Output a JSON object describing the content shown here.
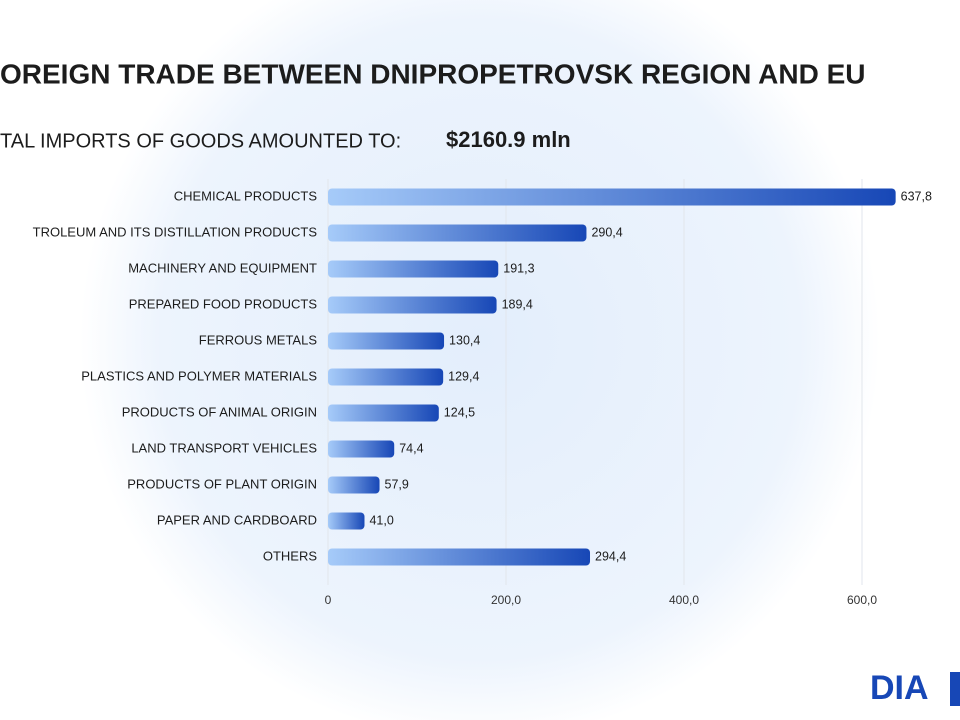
{
  "chart_data": {
    "type": "barh",
    "title": "OREIGN TRADE BETWEEN DNIPROPETROVSK REGION AND EU",
    "subtitle": "TAL IMPORTS OF GOODS AMOUNTED TO:",
    "total": "$2160.9 mln",
    "categories": [
      "CHEMICAL PRODUCTS",
      "TROLEUM AND ITS DISTILLATION PRODUCTS",
      "MACHINERY AND EQUIPMENT",
      "PREPARED FOOD PRODUCTS",
      "FERROUS METALS",
      "PLASTICS AND POLYMER MATERIALS",
      "PRODUCTS OF ANIMAL ORIGIN",
      "LAND TRANSPORT VEHICLES",
      "PRODUCTS OF PLANT ORIGIN",
      "PAPER AND CARDBOARD",
      "OTHERS"
    ],
    "values": [
      637.8,
      290.4,
      191.3,
      189.4,
      130.4,
      129.4,
      124.5,
      74.4,
      57.9,
      41.0,
      294.4
    ],
    "value_labels": [
      "637,8",
      "290,4",
      "191,3",
      "189,4",
      "130,4",
      "129,4",
      "124,5",
      "74,4",
      "57,9",
      "41,0",
      "294,4"
    ],
    "colors": [
      "#a6cbf9",
      "#1747b6"
    ],
    "xlim": [
      0,
      700
    ],
    "xticks": [
      0,
      {
        "value": 200,
        "label": "200,0"
      },
      {
        "value": 400,
        "label": "400,0"
      },
      {
        "value": 600,
        "label": "600,0"
      }
    ],
    "grid": true
  },
  "logo": "DIA"
}
